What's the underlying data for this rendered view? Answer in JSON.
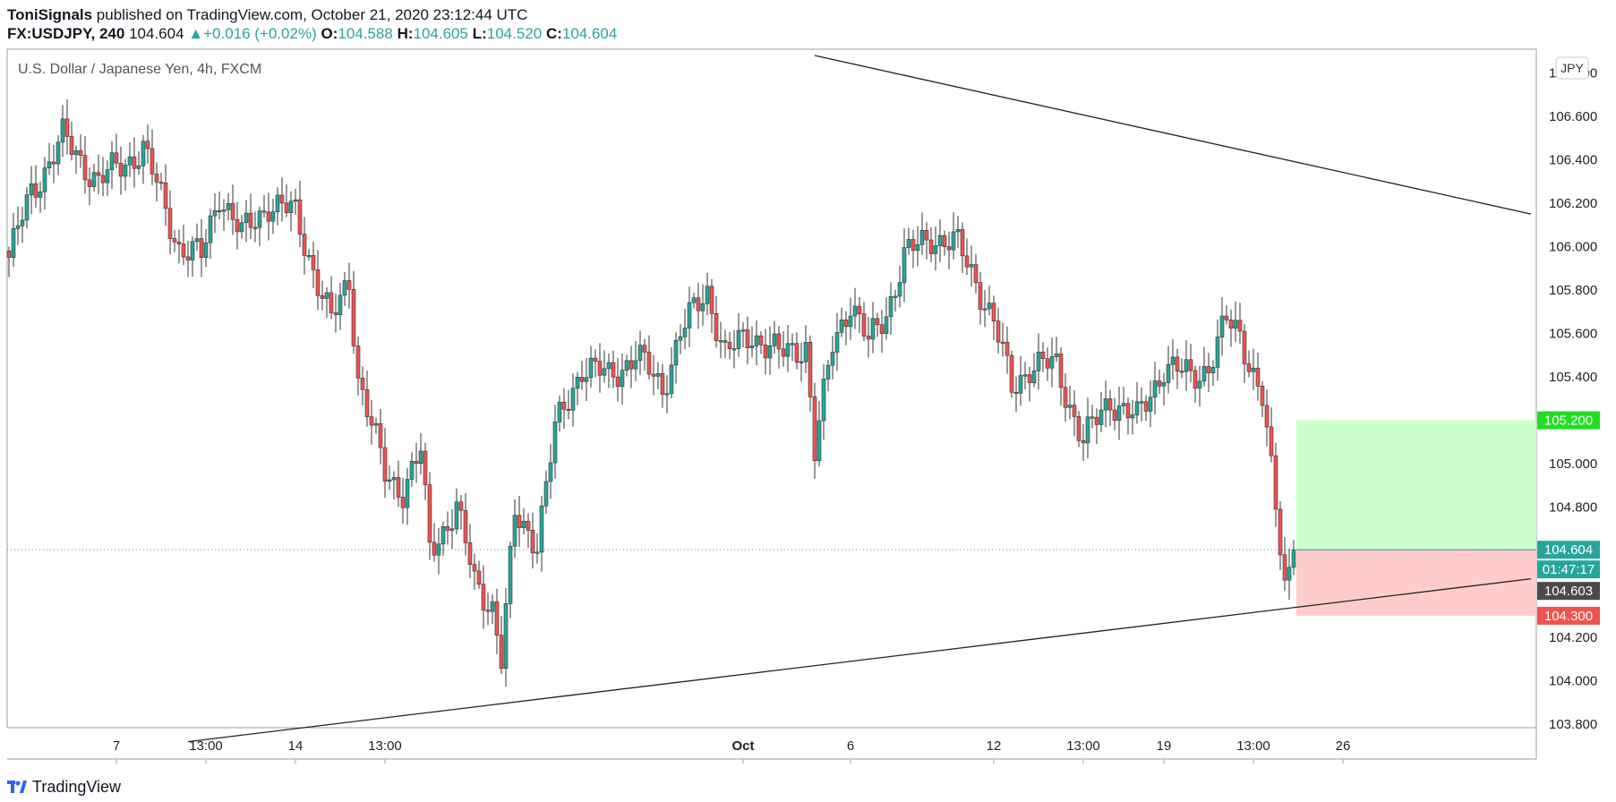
{
  "header": {
    "author": "ToniSignals",
    "published_text": " published on TradingView.com, October 21, 2020 23:12:44 UTC",
    "symbol": "FX:USDJPY, 240",
    "last": "104.604",
    "change": "+0.016 (+0.02%)",
    "o_label": "O:",
    "o_value": "104.588",
    "h_label": "H:",
    "h_value": "104.605",
    "l_label": "L:",
    "l_value": "104.520",
    "c_label": "C:",
    "c_value": "104.604"
  },
  "footer": {
    "brand": "TradingView"
  },
  "colors": {
    "up": "#26a69a",
    "down": "#ef5350",
    "target": "#ccffcc",
    "stop": "#ffcccc",
    "target_label": "#22dd22",
    "stop_label": "#ef5350",
    "price_label": "#26a69a"
  },
  "chart_data": {
    "type": "candlestick",
    "title": "U.S. Dollar / Japanese Yen, 4h, FXCM",
    "currency_badge": "JPY",
    "y_axis": {
      "ylim": [
        103.72,
        106.88
      ],
      "ticks": [
        "106.800",
        "106.600",
        "106.400",
        "106.200",
        "106.000",
        "105.800",
        "105.600",
        "105.400",
        "105.200",
        "105.000",
        "104.800",
        "104.600",
        "104.400",
        "104.200",
        "104.000",
        "103.800"
      ],
      "tick_values": [
        106.8,
        106.6,
        106.4,
        106.2,
        106.0,
        105.8,
        105.6,
        105.4,
        105.2,
        105.0,
        104.8,
        104.6,
        104.4,
        104.2,
        104.0,
        103.8
      ]
    },
    "x_axis": {
      "ticks": [
        "7",
        "13:00",
        "14",
        "13:00",
        "Oct",
        "6",
        "12",
        "13:00",
        "19",
        "13:00",
        "26"
      ],
      "tick_bar_index": [
        24,
        44,
        64,
        84,
        164,
        188,
        220,
        240,
        258,
        278,
        298
      ]
    },
    "price_labels": {
      "current": "104.604",
      "countdown": "01:47:17",
      "bid": "104.603",
      "target": "105.200",
      "stop": "104.300"
    },
    "position": {
      "entry": 104.604,
      "target": 105.2,
      "stop": 104.3
    },
    "trendlines": [
      {
        "name": "upper-resistance",
        "start": {
          "bar": 180,
          "price": 106.88
        },
        "end": {
          "bar": 340,
          "price": 106.15
        }
      },
      {
        "name": "lower-support",
        "start": {
          "bar": 40,
          "price": 103.72
        },
        "end": {
          "bar": 340,
          "price": 104.47
        }
      }
    ],
    "anchors": [
      [
        0,
        105.95
      ],
      [
        5,
        106.25
      ],
      [
        12,
        106.5
      ],
      [
        20,
        106.3
      ],
      [
        30,
        106.45
      ],
      [
        38,
        106.0
      ],
      [
        43,
        105.95
      ],
      [
        47,
        106.25
      ],
      [
        52,
        106.05
      ],
      [
        58,
        106.2
      ],
      [
        64,
        106.15
      ],
      [
        68,
        105.9
      ],
      [
        72,
        105.65
      ],
      [
        76,
        105.85
      ],
      [
        78,
        105.4
      ],
      [
        84,
        104.95
      ],
      [
        88,
        104.88
      ],
      [
        92,
        105.05
      ],
      [
        94,
        104.6
      ],
      [
        100,
        104.8
      ],
      [
        104,
        104.45
      ],
      [
        108,
        104.35
      ],
      [
        110,
        104.1
      ],
      [
        113,
        104.75
      ],
      [
        118,
        104.65
      ],
      [
        122,
        105.15
      ],
      [
        128,
        105.45
      ],
      [
        134,
        105.4
      ],
      [
        140,
        105.5
      ],
      [
        146,
        105.35
      ],
      [
        150,
        105.6
      ],
      [
        156,
        105.8
      ],
      [
        160,
        105.5
      ],
      [
        166,
        105.6
      ],
      [
        172,
        105.5
      ],
      [
        178,
        105.55
      ],
      [
        180,
        105.05
      ],
      [
        184,
        105.55
      ],
      [
        188,
        105.75
      ],
      [
        192,
        105.55
      ],
      [
        196,
        105.7
      ],
      [
        200,
        105.95
      ],
      [
        206,
        106.05
      ],
      [
        212,
        106.0
      ],
      [
        216,
        105.85
      ],
      [
        220,
        105.65
      ],
      [
        224,
        105.35
      ],
      [
        228,
        105.45
      ],
      [
        234,
        105.45
      ],
      [
        240,
        105.1
      ],
      [
        246,
        105.3
      ],
      [
        252,
        105.2
      ],
      [
        258,
        105.45
      ],
      [
        264,
        105.4
      ],
      [
        268,
        105.45
      ],
      [
        272,
        105.65
      ],
      [
        275,
        105.6
      ],
      [
        280,
        105.3
      ],
      [
        282,
        104.95
      ],
      [
        285,
        104.45
      ],
      [
        287,
        104.6
      ]
    ]
  }
}
